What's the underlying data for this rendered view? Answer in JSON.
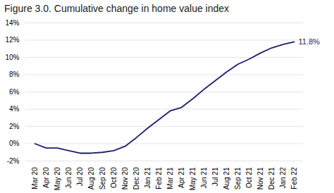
{
  "chart_data": {
    "type": "line",
    "title": "Figure 3.0. Cumulative change in home value index",
    "categories": [
      "Mar 20",
      "Apr 20",
      "May 20",
      "Jun 20",
      "Jul 20",
      "Aug 20",
      "Sep 20",
      "Oct 20",
      "Nov 20",
      "Dec 20",
      "Jan 21",
      "Feb 21",
      "Mar 21",
      "Apr 21",
      "May 21",
      "Jun 21",
      "Jul 21",
      "Aug 21",
      "Sep 21",
      "Oct 21",
      "Nov 21",
      "Dec 21",
      "Jan 22",
      "Feb 22"
    ],
    "values": [
      0.0,
      -0.5,
      -0.5,
      -0.8,
      -1.1,
      -1.1,
      -1.0,
      -0.8,
      -0.3,
      0.7,
      1.8,
      2.8,
      3.8,
      4.2,
      5.2,
      6.3,
      7.3,
      8.3,
      9.2,
      9.8,
      10.5,
      11.1,
      11.5,
      11.8
    ],
    "color": "#1a1f6e",
    "ylim": [
      -2,
      14
    ],
    "yticks": [
      {
        "value": -2,
        "label": "-2%"
      },
      {
        "value": 0,
        "label": "0%"
      },
      {
        "value": 2,
        "label": "2%"
      },
      {
        "value": 4,
        "label": "4%"
      },
      {
        "value": 6,
        "label": "6%"
      },
      {
        "value": 8,
        "label": "8%"
      },
      {
        "value": 10,
        "label": "10%"
      },
      {
        "value": 12,
        "label": "12%"
      },
      {
        "value": 14,
        "label": "14%"
      }
    ],
    "grid": true,
    "annotations": [
      {
        "text": "11.8%",
        "x": "Feb 22",
        "y": 11.8
      }
    ]
  }
}
